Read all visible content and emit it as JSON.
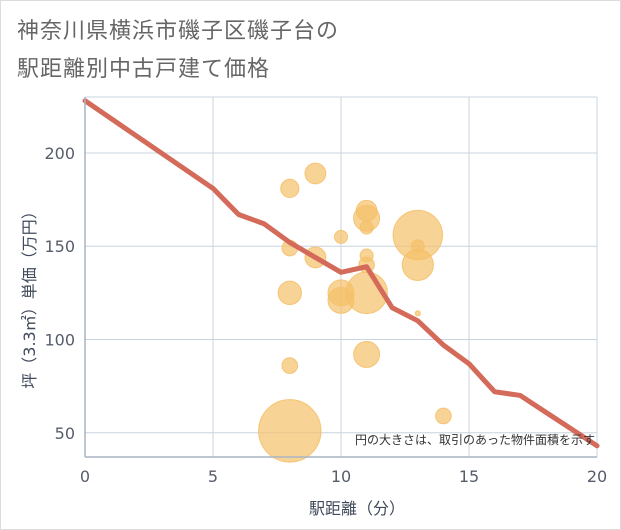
{
  "title_line1": "神奈川県横浜市磯子区磯子台の",
  "title_line2": "駅距離別中古戸建て価格",
  "chart_data": {
    "type": "scatter",
    "xlabel": "駅距離（分）",
    "ylabel": "坪（3.3㎡）単価（万円）",
    "xlim": [
      0,
      20
    ],
    "ylim": [
      37,
      230
    ],
    "xticks": [
      0,
      5,
      10,
      15,
      20
    ],
    "yticks": [
      50,
      100,
      150,
      200
    ],
    "grid": true,
    "note": "円の大きさは、取引のあった物件面積を示す",
    "colors": {
      "bubble": "#f5c06a",
      "line": "#d46a5a",
      "grid": "#c8d4e0",
      "axis": "#a8b4c4"
    },
    "bubbles": [
      {
        "x": 8,
        "y": 181,
        "size": 7
      },
      {
        "x": 9,
        "y": 189,
        "size": 8
      },
      {
        "x": 8,
        "y": 149,
        "size": 6
      },
      {
        "x": 9,
        "y": 144,
        "size": 8
      },
      {
        "x": 8,
        "y": 125,
        "size": 9
      },
      {
        "x": 8,
        "y": 86,
        "size": 6
      },
      {
        "x": 8,
        "y": 51,
        "size": 24
      },
      {
        "x": 10,
        "y": 155,
        "size": 5
      },
      {
        "x": 10,
        "y": 125,
        "size": 10
      },
      {
        "x": 10,
        "y": 121,
        "size": 10
      },
      {
        "x": 11,
        "y": 169,
        "size": 8
      },
      {
        "x": 11,
        "y": 165,
        "size": 10
      },
      {
        "x": 11,
        "y": 160,
        "size": 5
      },
      {
        "x": 11,
        "y": 145,
        "size": 5
      },
      {
        "x": 11,
        "y": 140,
        "size": 6
      },
      {
        "x": 11,
        "y": 125,
        "size": 16
      },
      {
        "x": 11,
        "y": 92,
        "size": 10
      },
      {
        "x": 13,
        "y": 156,
        "size": 19
      },
      {
        "x": 13,
        "y": 150,
        "size": 5
      },
      {
        "x": 13,
        "y": 140,
        "size": 12
      },
      {
        "x": 13,
        "y": 114,
        "size": 2
      },
      {
        "x": 14,
        "y": 59,
        "size": 6
      }
    ],
    "line": {
      "x": [
        0,
        5,
        6,
        7,
        8,
        9,
        10,
        11,
        12,
        13,
        14,
        15,
        16,
        17,
        18,
        19,
        20
      ],
      "y": [
        228,
        181,
        167,
        162,
        152,
        144,
        136,
        139,
        117,
        110,
        97,
        87,
        72,
        70,
        61,
        52,
        43
      ]
    }
  }
}
